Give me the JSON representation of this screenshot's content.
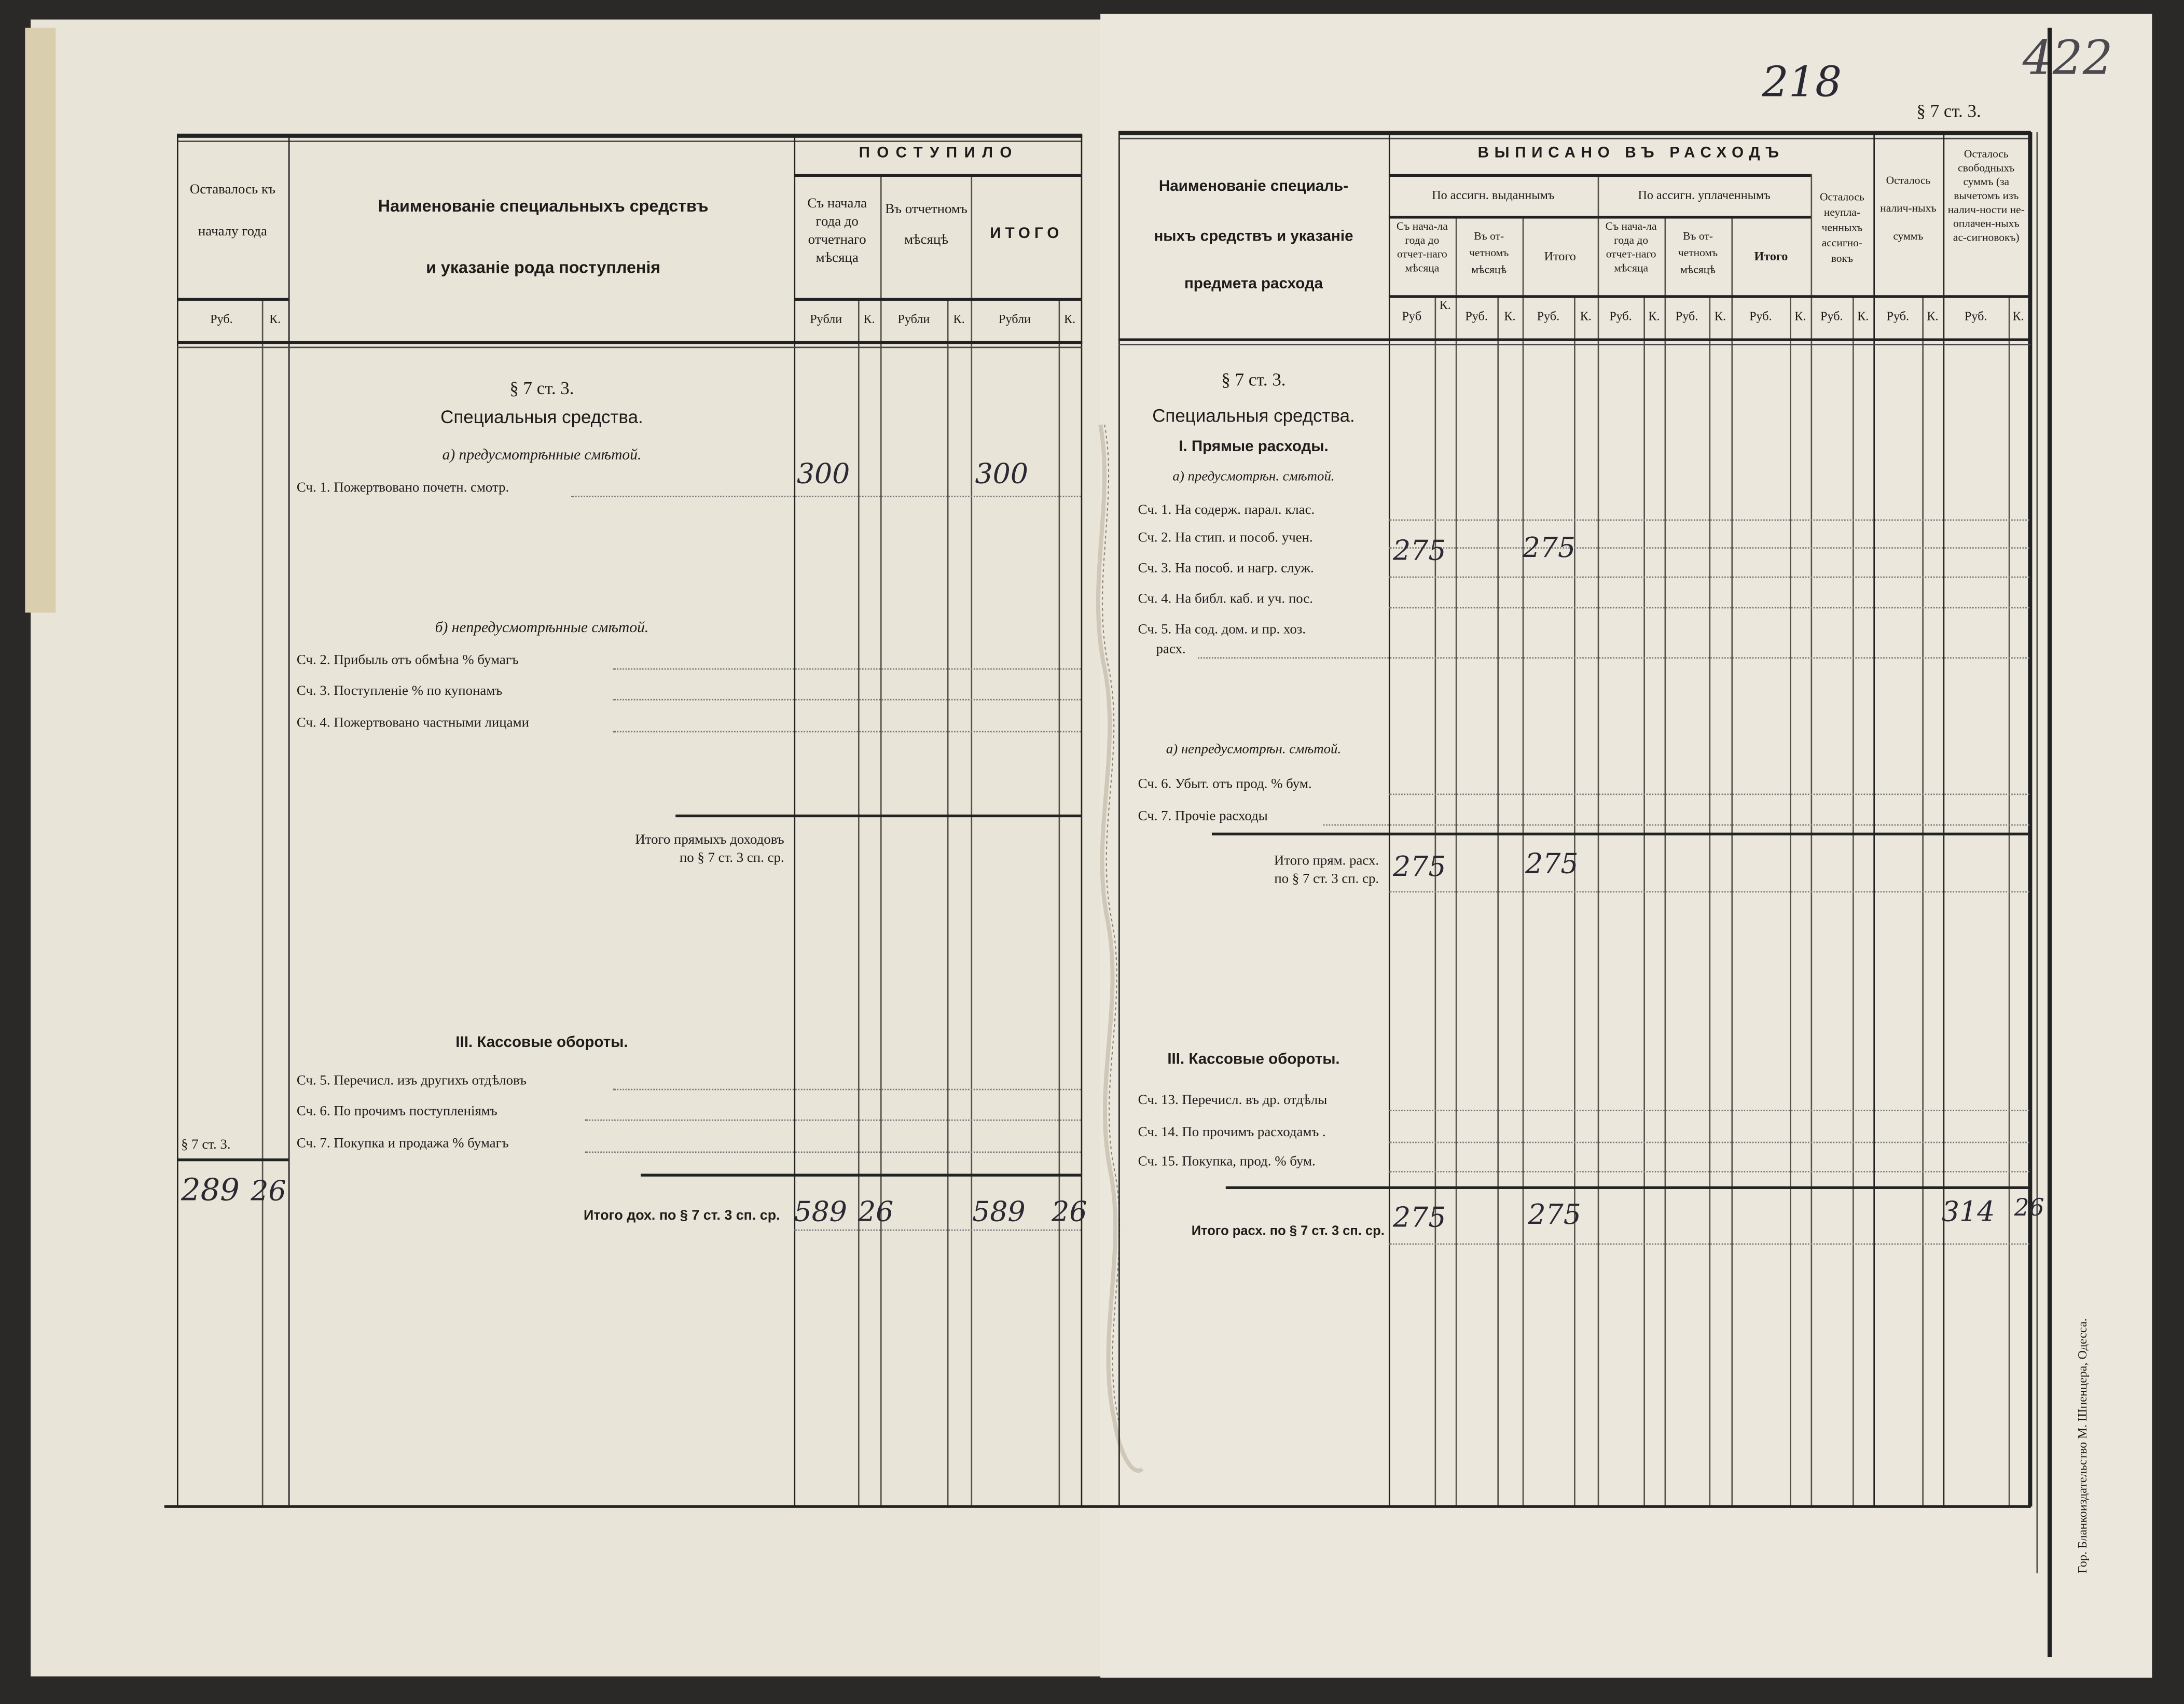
{
  "page_marks": {
    "folio_number": "218",
    "archive_number": "422",
    "section_ref": "§ 7 ст. 3."
  },
  "left": {
    "headers": {
      "remaining_start": "Оставалось къ началу года",
      "name_line1": "Наименованіе специальныхъ средствъ",
      "name_line2": "и указаніе рода поступленія",
      "received": "ПОСТУПИЛО",
      "from_year_start": "Съ начала года до отчетнаго мѣсяца",
      "in_month": "Въ отчетномъ мѣсяцѣ",
      "total": "ИТОГО",
      "rub": "Руб.",
      "rubli": "Рубли",
      "kop": "К."
    },
    "section": "§ 7 ст. 3.",
    "title": "Специальныя средства.",
    "sub_a": "а) предусмотрѣнные смѣтой.",
    "sub_b": "б) непредусмотрѣнные смѣтой.",
    "rows": [
      "Сч. 1. Пожертвовано почетн. смотр.",
      "Сч. 2. Прибыль отъ обмѣна % бумагъ",
      "Сч. 3. Поступленіе % по купонамъ",
      "Сч. 4. Пожертвовано частными лицами"
    ],
    "subtotal_1": "Итого прямыхъ доходовъ",
    "subtotal_2": "по § 7 ст. 3 сп. ср.",
    "cash_title": "III. Кассовые обороты.",
    "cash_rows": [
      "Сч. 5. Перечисл. изъ другихъ отдѣловъ",
      "Сч. 6. По прочимъ поступленіямъ",
      "Сч. 7. Покупка и продажа % бумагъ"
    ],
    "remaining_ref": "§ 7 ст. 3.",
    "total_label": "Итого дох. по § 7 ст. 3 сп. ср.",
    "handwritten": {
      "row1_from_start": "300",
      "row1_total": "300",
      "remaining_rub": "289",
      "remaining_kop": "26",
      "total_from_start_rub": "589",
      "total_from_start_kop": "26",
      "total_rub": "589",
      "total_kop": "26"
    }
  },
  "right": {
    "headers": {
      "name_line1": "Наименованіе специаль-",
      "name_line2": "ныхъ средствъ и указаніе",
      "name_line3": "предмета расхода",
      "written_off": "ВЫПИСАНО ВЪ РАСХОДЪ",
      "by_issued": "По ассигн. выданнымъ",
      "by_paid": "По ассигн. уплаченнымъ",
      "from_year_start": "Съ нача-ла года до отчет-наго мѣсяца",
      "in_month": "Въ от-четномъ мѣсяцѣ",
      "total": "Итого",
      "unpaid": "Осталось неупла-ченныхъ ассигно-вокъ",
      "cash": "Осталось налич-ныхъ суммъ",
      "free": "Осталось свободныхъ суммъ (за вычетомъ изъ налич-ности не-оплачен-ныхъ ас-сигновокъ)",
      "rub": "Руб.",
      "rub_short": "Руб",
      "kop": "К."
    },
    "section": "§ 7 ст. 3.",
    "title": "Специальныя средства.",
    "direct": "I. Прямые расходы.",
    "sub_a": "а) предусмотрѣн. смѣтой.",
    "rows": [
      "Сч. 1. На содерж. парал. клас.",
      "Сч. 2. На стип. и пособ. учен.",
      "Сч. 3. На пособ. и нагр. служ.",
      "Сч. 4. На библ. каб. и уч. пос.",
      "Сч. 5. На сод. дом. и пр. хоз.",
      "расх."
    ],
    "sub_b": "а) непредусмотрѣн. смѣтой.",
    "rows_b": [
      "Сч. 6. Убыт. отъ прод. % бум.",
      "Сч. 7. Прочіе расходы"
    ],
    "subtotal_1": "Итого прям. расх.",
    "subtotal_2": "по § 7 ст. 3 сп. ср.",
    "cash_title": "III. Кассовые обороты.",
    "cash_rows": [
      "Сч. 13. Перечисл. въ др. отдѣлы",
      "Сч. 14. По прочимъ расходамъ .",
      "Сч. 15. Покупка, прод. % бум."
    ],
    "total_label": "Итого расх. по § 7 ст. 3 сп. ср.",
    "handwritten": {
      "row3_from_start": "275",
      "row3_total": "275",
      "subtotal_from_start": "275",
      "subtotal_total": "275",
      "total_from_start": "275",
      "total_total": "275",
      "free_rub": "314",
      "free_kop": "26"
    }
  },
  "printer": "Гор. Бланкоиздательство М. Шпенцера, Одесса."
}
